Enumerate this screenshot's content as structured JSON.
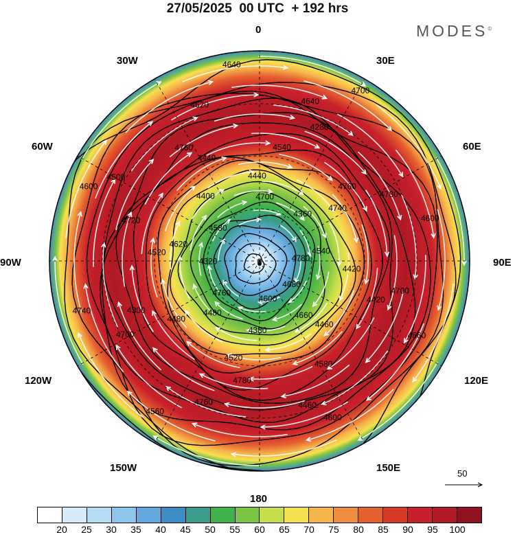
{
  "title": "27/05/2025  00 UTC  + 192 hrs",
  "brand": "MODES",
  "brand_mark": "©",
  "longitude_labels": {
    "top": "0",
    "bottom": "180",
    "left": "90W",
    "right": "90E",
    "nw1": "30W",
    "ne1": "30E",
    "nw2": "60W",
    "ne2": "60E",
    "sw1": "120W",
    "se1": "120E",
    "sw2": "150W",
    "se2": "150E"
  },
  "contour_labels": [
    "4780",
    "4760",
    "4700",
    "4660",
    "4620",
    "4740",
    "4520",
    "4440",
    "4420",
    "4300",
    "4280",
    "4460",
    "4500",
    "4600",
    "4560",
    "4640",
    "4680",
    "4320",
    "4360",
    "4380",
    "4400",
    "4420",
    "4480",
    "4540",
    "4580",
    "4720",
    "4780",
    "4760",
    "4620",
    "4660",
    "4740",
    "4700",
    "4600",
    "4580",
    "4540",
    "4480",
    "4440",
    "4460",
    "4520",
    "4760",
    "4780",
    "4760",
    "4700",
    "4700",
    "4640",
    "4600",
    "4600"
  ],
  "reference_vector": "50",
  "colorbar": {
    "colors": [
      "#ffffff",
      "#d6ecfa",
      "#b4dcf5",
      "#8ec7ee",
      "#63a8dc",
      "#3c8cc6",
      "#3a9c8a",
      "#3fb24a",
      "#7cc443",
      "#c4de4c",
      "#f7e04f",
      "#f6b54c",
      "#ef8c3d",
      "#e5612f",
      "#d83a2a",
      "#c8202a",
      "#b01a24",
      "#8f1420"
    ],
    "labels": [
      "20",
      "25",
      "30",
      "35",
      "40",
      "45",
      "50",
      "55",
      "60",
      "65",
      "70",
      "75",
      "80",
      "85",
      "90",
      "95",
      "100"
    ]
  }
}
